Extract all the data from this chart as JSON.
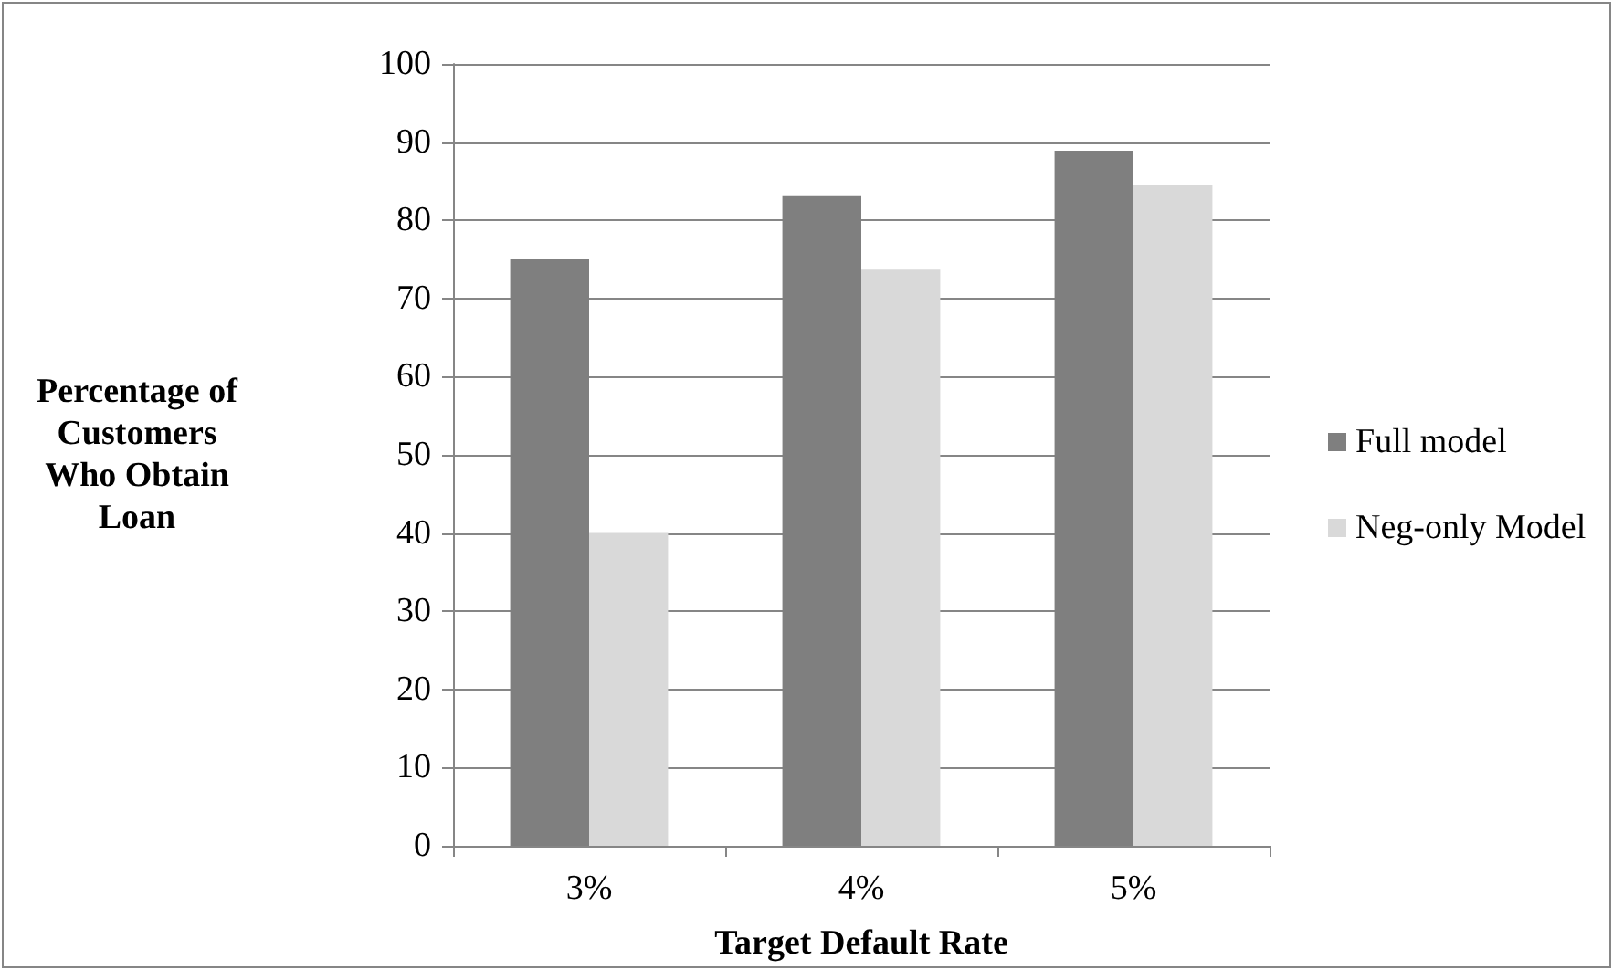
{
  "chart_data": {
    "type": "bar",
    "xlabel": "Target Default Rate",
    "ylabel": "Percentage of\nCustomers\nWho Obtain\nLoan",
    "categories": [
      "3%",
      "4%",
      "5%"
    ],
    "series": [
      {
        "name": "Full model",
        "color": "#7f7f7f",
        "values": [
          75,
          83.1,
          88.9
        ]
      },
      {
        "name": "Neg-only Model",
        "color": "#d9d9d9",
        "values": [
          40,
          73.7,
          84.5
        ]
      }
    ],
    "ylim": [
      0,
      100
    ],
    "yticks": [
      0,
      10,
      20,
      30,
      40,
      50,
      60,
      70,
      80,
      90,
      100
    ],
    "grid": "y",
    "legend": "right"
  }
}
